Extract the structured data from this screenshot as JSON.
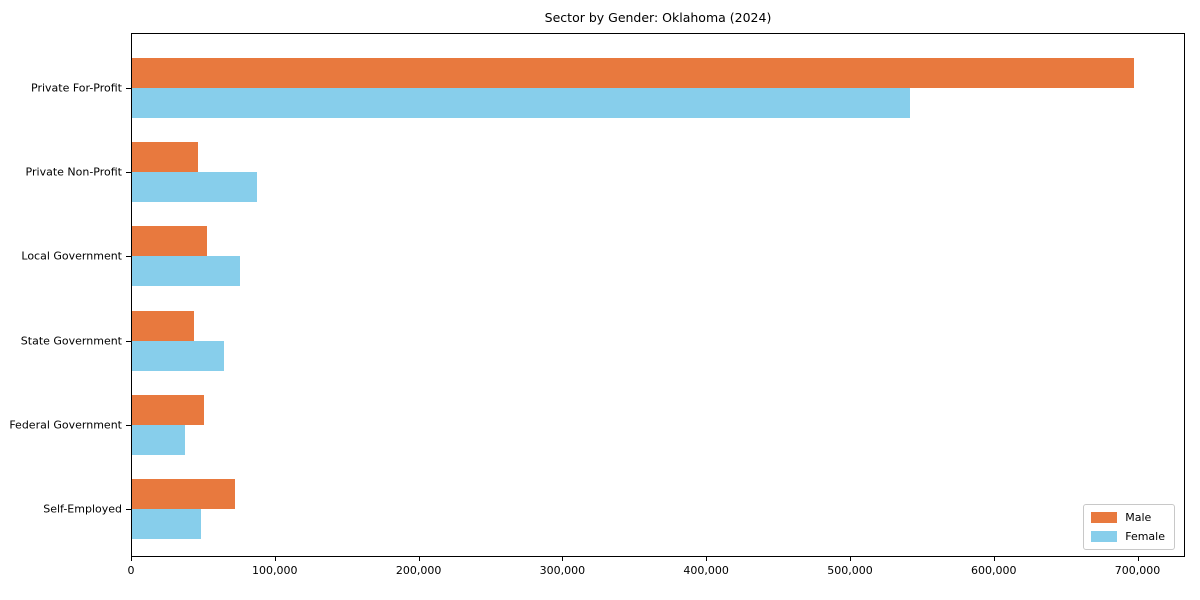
{
  "title": "Sector by Gender: Oklahoma (2024)",
  "colors": {
    "male": "#e8793e",
    "female": "#87ceeb",
    "axis": "#000000",
    "background": "#ffffff"
  },
  "legend": {
    "position": "lower right",
    "entries": [
      {
        "label": "Male",
        "color": "#e8793e"
      },
      {
        "label": "Female",
        "color": "#87ceeb"
      }
    ]
  },
  "chart_data": {
    "type": "bar",
    "orientation": "horizontal",
    "title": "Sector by Gender: Oklahoma (2024)",
    "categories": [
      "Private For-Profit",
      "Private Non-Profit",
      "Local Government",
      "State Government",
      "Federal Government",
      "Self-Employed"
    ],
    "series": [
      {
        "name": "Male",
        "color": "#e8793e",
        "values": [
          698000,
          46000,
          52000,
          43000,
          50000,
          72000
        ]
      },
      {
        "name": "Female",
        "color": "#87ceeb",
        "values": [
          542000,
          87000,
          75000,
          64000,
          37000,
          48000
        ]
      }
    ],
    "xlabel": "",
    "ylabel": "",
    "xlim": [
      0,
      733000
    ],
    "xticks": [
      0,
      100000,
      200000,
      300000,
      400000,
      500000,
      600000,
      700000
    ],
    "xtick_labels": [
      "0",
      "100,000",
      "200,000",
      "300,000",
      "400,000",
      "500,000",
      "600,000",
      "700,000"
    ],
    "grid": false,
    "legend_position": "lower right"
  }
}
